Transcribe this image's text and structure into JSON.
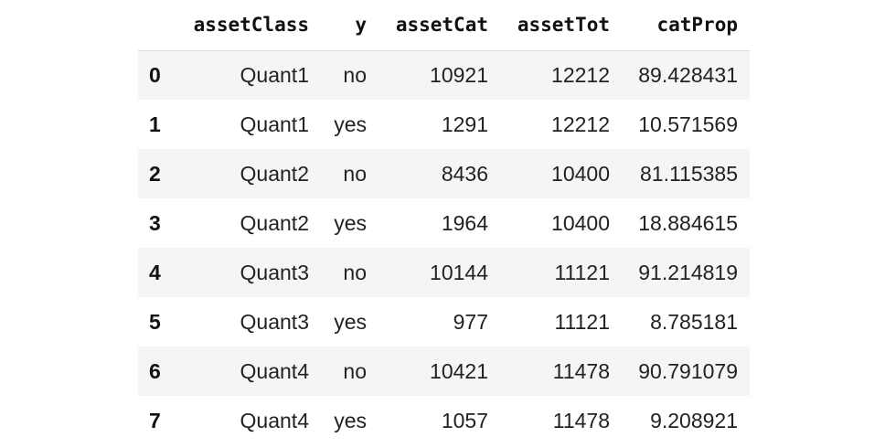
{
  "table": {
    "columns": [
      "",
      "assetClass",
      "y",
      "assetCat",
      "assetTot",
      "catProp"
    ],
    "rows": [
      {
        "index": "0",
        "assetClass": "Quant1",
        "y": "no",
        "assetCat": "10921",
        "assetTot": "12212",
        "catProp": "89.428431"
      },
      {
        "index": "1",
        "assetClass": "Quant1",
        "y": "yes",
        "assetCat": "1291",
        "assetTot": "12212",
        "catProp": "10.571569"
      },
      {
        "index": "2",
        "assetClass": "Quant2",
        "y": "no",
        "assetCat": "8436",
        "assetTot": "10400",
        "catProp": "81.115385"
      },
      {
        "index": "3",
        "assetClass": "Quant2",
        "y": "yes",
        "assetCat": "1964",
        "assetTot": "10400",
        "catProp": "18.884615"
      },
      {
        "index": "4",
        "assetClass": "Quant3",
        "y": "no",
        "assetCat": "10144",
        "assetTot": "11121",
        "catProp": "91.214819"
      },
      {
        "index": "5",
        "assetClass": "Quant3",
        "y": "yes",
        "assetCat": "977",
        "assetTot": "11121",
        "catProp": "8.785181"
      },
      {
        "index": "6",
        "assetClass": "Quant4",
        "y": "no",
        "assetCat": "10421",
        "assetTot": "11478",
        "catProp": "90.791079"
      },
      {
        "index": "7",
        "assetClass": "Quant4",
        "y": "yes",
        "assetCat": "1057",
        "assetTot": "11478",
        "catProp": "9.208921"
      }
    ]
  },
  "colors": {
    "stripe": "#f5f5f5",
    "header_border": "#dcdcdc",
    "text": "#222222"
  }
}
